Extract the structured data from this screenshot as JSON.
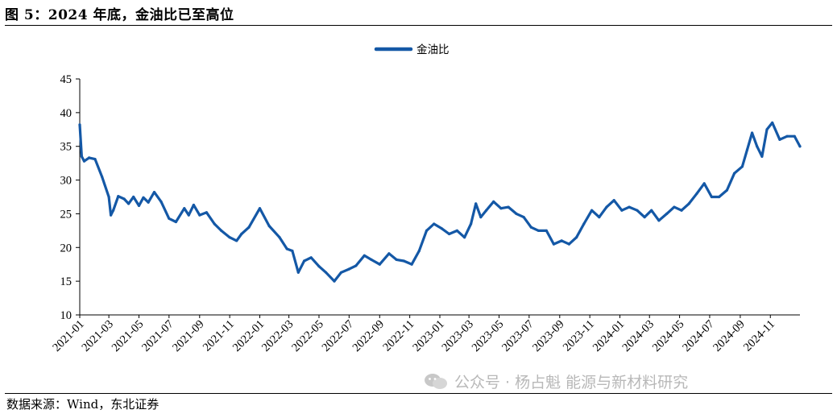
{
  "figure": {
    "title": "图 5：2024 年底，金油比已至高位",
    "source": "数据来源：Wind，东北证券",
    "watermark": "公众号 · 杨占魁 能源与新材料研究"
  },
  "colors": {
    "series": "#1458A6",
    "axis": "#000000",
    "watermark": "#b8b8b8"
  },
  "icons": {
    "watermark": "wechat-icon"
  },
  "chart_data": {
    "type": "line",
    "title": "",
    "xlabel": "",
    "ylabel": "",
    "ylim": [
      10,
      45
    ],
    "yticks": [
      10,
      15,
      20,
      25,
      30,
      35,
      40,
      45
    ],
    "xlim": [
      "2021-01-01",
      "2024-12-31"
    ],
    "xticks": [
      "2021-01",
      "2021-03",
      "2021-05",
      "2021-07",
      "2021-09",
      "2021-11",
      "2022-01",
      "2022-03",
      "2022-05",
      "2022-07",
      "2022-09",
      "2022-11",
      "2023-01",
      "2023-03",
      "2023-05",
      "2023-07",
      "2023-09",
      "2023-11",
      "2024-01",
      "2024-03",
      "2024-05",
      "2024-07",
      "2024-09",
      "2024-11"
    ],
    "legend": {
      "position": "top-center",
      "entries": [
        "金油比"
      ]
    },
    "grid": false,
    "series": [
      {
        "name": "金油比",
        "color": "#1458A6",
        "x": [
          "2021-01-01",
          "2021-01-05",
          "2021-01-10",
          "2021-01-20",
          "2021-02-01",
          "2021-02-15",
          "2021-03-01",
          "2021-03-05",
          "2021-03-10",
          "2021-03-20",
          "2021-04-01",
          "2021-04-10",
          "2021-04-20",
          "2021-05-01",
          "2021-05-10",
          "2021-05-20",
          "2021-06-01",
          "2021-06-15",
          "2021-07-01",
          "2021-07-15",
          "2021-08-01",
          "2021-08-10",
          "2021-08-20",
          "2021-09-01",
          "2021-09-15",
          "2021-10-01",
          "2021-10-15",
          "2021-11-01",
          "2021-11-15",
          "2021-11-25",
          "2021-12-10",
          "2022-01-01",
          "2022-01-20",
          "2022-02-10",
          "2022-02-25",
          "2022-03-08",
          "2022-03-20",
          "2022-04-01",
          "2022-04-15",
          "2022-05-01",
          "2022-05-15",
          "2022-06-01",
          "2022-06-15",
          "2022-07-01",
          "2022-07-15",
          "2022-08-01",
          "2022-08-15",
          "2022-09-01",
          "2022-09-20",
          "2022-10-05",
          "2022-10-20",
          "2022-11-05",
          "2022-11-20",
          "2022-12-05",
          "2022-12-20",
          "2023-01-05",
          "2023-01-20",
          "2023-02-05",
          "2023-02-20",
          "2023-03-05",
          "2023-03-15",
          "2023-03-25",
          "2023-04-05",
          "2023-04-20",
          "2023-05-05",
          "2023-05-20",
          "2023-06-05",
          "2023-06-20",
          "2023-07-05",
          "2023-07-20",
          "2023-08-05",
          "2023-08-20",
          "2023-09-05",
          "2023-09-20",
          "2023-10-05",
          "2023-10-20",
          "2023-11-05",
          "2023-11-20",
          "2023-12-05",
          "2023-12-20",
          "2024-01-05",
          "2024-01-20",
          "2024-02-05",
          "2024-02-20",
          "2024-03-05",
          "2024-03-20",
          "2024-04-05",
          "2024-04-20",
          "2024-05-05",
          "2024-05-20",
          "2024-06-05",
          "2024-06-20",
          "2024-07-05",
          "2024-07-20",
          "2024-08-05",
          "2024-08-20",
          "2024-09-05",
          "2024-09-15",
          "2024-09-25",
          "2024-10-05",
          "2024-10-15",
          "2024-10-25",
          "2024-11-05",
          "2024-11-20",
          "2024-12-05",
          "2024-12-20",
          "2024-12-31"
        ],
        "y": [
          38.2,
          33.5,
          32.8,
          33.3,
          33.1,
          30.5,
          27.5,
          24.8,
          25.5,
          27.6,
          27.2,
          26.5,
          27.5,
          26.2,
          27.4,
          26.7,
          28.2,
          26.8,
          24.3,
          23.8,
          25.8,
          24.8,
          26.3,
          24.8,
          25.2,
          23.5,
          22.5,
          21.5,
          21.0,
          22.0,
          23.0,
          25.8,
          23.2,
          21.5,
          19.8,
          19.5,
          16.3,
          18.0,
          18.5,
          17.2,
          16.3,
          15.0,
          16.3,
          16.8,
          17.3,
          18.8,
          18.2,
          17.5,
          19.1,
          18.2,
          18.0,
          17.5,
          19.5,
          22.5,
          23.5,
          22.8,
          22.0,
          22.5,
          21.5,
          23.5,
          26.5,
          24.5,
          25.5,
          26.8,
          25.8,
          26.0,
          25.0,
          24.5,
          23.0,
          22.5,
          22.5,
          20.5,
          21.0,
          20.5,
          21.5,
          23.5,
          25.5,
          24.5,
          26.0,
          27.0,
          25.5,
          26.0,
          25.5,
          24.5,
          25.5,
          24.0,
          25.0,
          26.0,
          25.5,
          26.5,
          28.0,
          29.5,
          27.5,
          27.5,
          28.5,
          31.0,
          32.0,
          34.5,
          37.0,
          35.0,
          33.5,
          37.5,
          38.5,
          36.0,
          36.5,
          36.5,
          35.0
        ]
      }
    ]
  }
}
